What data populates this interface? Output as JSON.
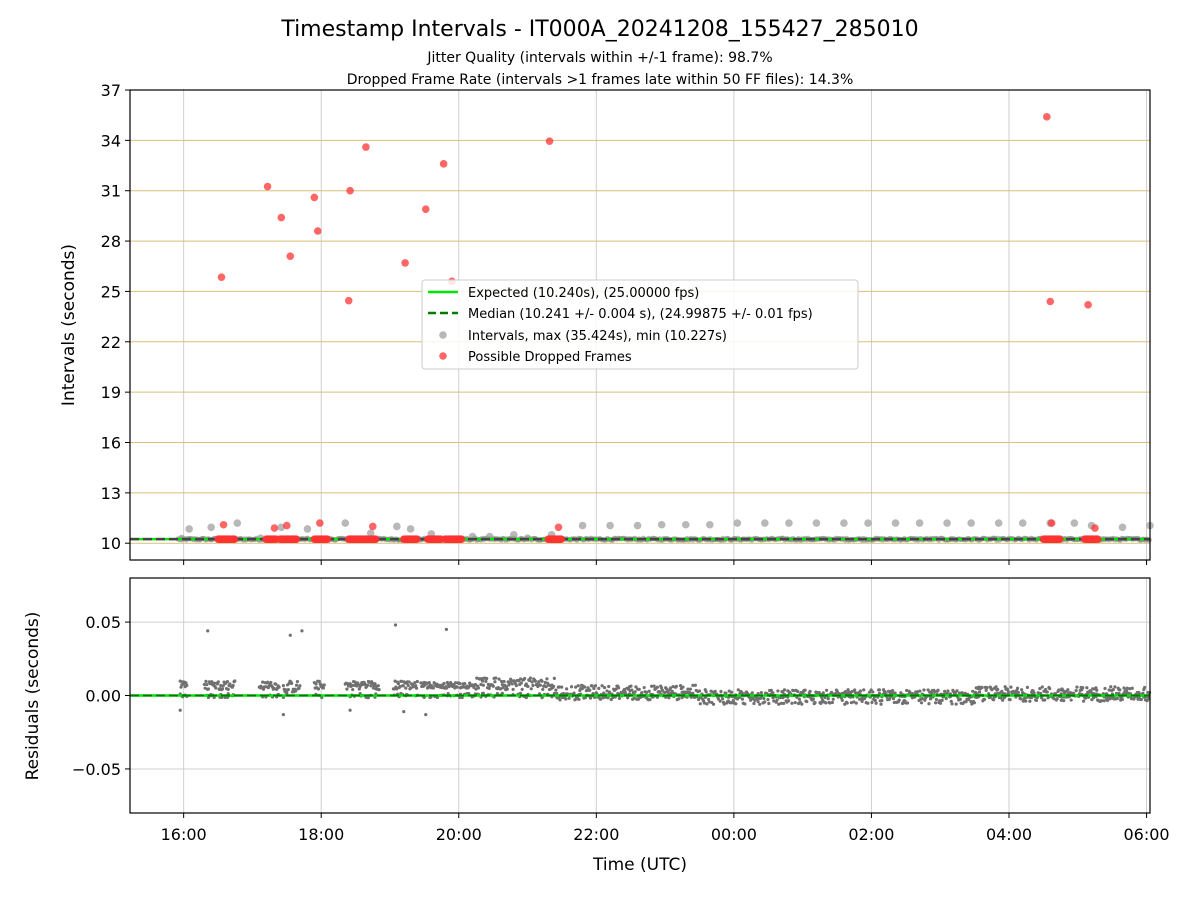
{
  "figure": {
    "title": "Timestamp Intervals - IT000A_20241208_155427_285010",
    "subtitle_1": "Jitter Quality (intervals within +/-1 frame): 98.7%",
    "subtitle_2": "Dropped Frame Rate (intervals >1 frames late within 50 FF files): 14.3%",
    "xlabel": "Time (UTC)"
  },
  "chart_data": [
    {
      "type": "scatter",
      "panel": "intervals",
      "ylabel": "Intervals (seconds)",
      "xlim_hours": [
        15.22,
        30.05
      ],
      "ylim": [
        9.0,
        37.0
      ],
      "yticks": [
        10,
        13,
        16,
        19,
        22,
        25,
        28,
        31,
        34,
        37
      ],
      "xticks": [
        "16:00",
        "18:00",
        "20:00",
        "22:00",
        "00:00",
        "02:00",
        "04:00",
        "06:00"
      ],
      "grid": "vertical gray at x ticks; horizontal goldenrod at y ticks",
      "legend_position": "center",
      "legend": [
        "Expected (10.240s), (25.00000 fps)",
        "Median (10.241 +/- 0.004 s), (24.99875 +/- 0.01 fps)",
        "Intervals, max (35.424s), min (10.227s)",
        "Possible Dropped Frames"
      ],
      "expected_line": 10.24,
      "median_line": 10.241,
      "series": [
        {
          "name": "Intervals, max (35.424s), min (10.227s)",
          "color": "#a0a0a0",
          "points": [
            [
              15.97,
              10.28
            ],
            [
              16.08,
              10.85
            ],
            [
              16.4,
              10.95
            ],
            [
              16.78,
              11.2
            ],
            [
              17.12,
              10.3
            ],
            [
              17.42,
              10.95
            ],
            [
              17.8,
              10.85
            ],
            [
              18.35,
              11.2
            ],
            [
              18.72,
              10.6
            ],
            [
              19.1,
              11.0
            ],
            [
              19.3,
              10.85
            ],
            [
              19.6,
              10.55
            ],
            [
              20.2,
              10.4
            ],
            [
              20.45,
              10.4
            ],
            [
              20.8,
              10.5
            ],
            [
              21.0,
              10.3
            ],
            [
              21.35,
              10.5
            ],
            [
              21.8,
              11.05
            ],
            [
              22.2,
              11.05
            ],
            [
              22.6,
              11.05
            ],
            [
              22.95,
              11.1
            ],
            [
              23.3,
              11.1
            ],
            [
              23.65,
              11.1
            ],
            [
              24.05,
              11.2
            ],
            [
              24.45,
              11.2
            ],
            [
              24.8,
              11.2
            ],
            [
              25.2,
              11.2
            ],
            [
              25.6,
              11.2
            ],
            [
              25.95,
              11.2
            ],
            [
              26.35,
              11.2
            ],
            [
              26.7,
              11.2
            ],
            [
              27.1,
              11.2
            ],
            [
              27.45,
              11.2
            ],
            [
              27.85,
              11.2
            ],
            [
              28.2,
              11.2
            ],
            [
              28.6,
              11.2
            ],
            [
              28.95,
              11.2
            ],
            [
              29.2,
              11.05
            ],
            [
              29.65,
              10.95
            ],
            [
              30.05,
              11.05
            ]
          ]
        },
        {
          "name": "Possible Dropped Frames",
          "color": "#ff3333",
          "points": [
            [
              16.55,
              25.85
            ],
            [
              16.58,
              11.1
            ],
            [
              17.22,
              31.25
            ],
            [
              17.32,
              10.9
            ],
            [
              17.42,
              29.4
            ],
            [
              17.5,
              11.05
            ],
            [
              17.55,
              27.1
            ],
            [
              17.9,
              30.6
            ],
            [
              17.95,
              28.6
            ],
            [
              17.98,
              11.2
            ],
            [
              18.4,
              24.45
            ],
            [
              18.42,
              31.0
            ],
            [
              18.65,
              33.6
            ],
            [
              18.75,
              11.0
            ],
            [
              19.22,
              26.7
            ],
            [
              19.52,
              29.9
            ],
            [
              19.78,
              32.6
            ],
            [
              19.9,
              25.6
            ],
            [
              21.32,
              33.95
            ],
            [
              21.45,
              10.95
            ],
            [
              28.55,
              35.4
            ],
            [
              28.6,
              24.4
            ],
            [
              28.62,
              11.2
            ],
            [
              29.15,
              24.2
            ],
            [
              29.25,
              10.9
            ]
          ],
          "clusters_near_10_24": [
            [
              16.5,
              16.75
            ],
            [
              17.2,
              17.35
            ],
            [
              17.4,
              17.65
            ],
            [
              17.9,
              18.1
            ],
            [
              18.4,
              18.65
            ],
            [
              18.65,
              18.8
            ],
            [
              19.2,
              19.4
            ],
            [
              19.55,
              19.75
            ],
            [
              19.8,
              20.05
            ],
            [
              21.3,
              21.5
            ],
            [
              28.5,
              28.75
            ],
            [
              29.1,
              29.3
            ]
          ]
        }
      ]
    },
    {
      "type": "scatter",
      "panel": "residuals",
      "ylabel": "Residuals (seconds)",
      "xlim_hours": [
        15.22,
        30.05
      ],
      "ylim": [
        -0.08,
        0.08
      ],
      "yticks": [
        "−0.05",
        "0.00",
        "0.05"
      ],
      "ytick_values": [
        -0.05,
        0.0,
        0.05
      ],
      "grid": "gray at x and y ticks",
      "zero_line": 0.0,
      "color": "#707070",
      "outliers": [
        [
          16.35,
          0.044
        ],
        [
          17.55,
          0.041
        ],
        [
          17.72,
          0.044
        ],
        [
          19.08,
          0.048
        ],
        [
          19.82,
          0.045
        ],
        [
          19.52,
          -0.013
        ],
        [
          15.95,
          -0.01
        ],
        [
          17.45,
          -0.013
        ],
        [
          18.42,
          -0.01
        ],
        [
          19.2,
          -0.011
        ]
      ],
      "bands": [
        {
          "from": 15.95,
          "to": 16.05,
          "level": 0.008,
          "spread": 0.003
        },
        {
          "from": 16.3,
          "to": 16.75,
          "level": 0.007,
          "spread": 0.003
        },
        {
          "from": 17.1,
          "to": 17.4,
          "level": 0.007,
          "spread": 0.003
        },
        {
          "from": 17.45,
          "to": 17.7,
          "level": 0.006,
          "spread": 0.004
        },
        {
          "from": 17.9,
          "to": 18.05,
          "level": 0.007,
          "spread": 0.003
        },
        {
          "from": 18.35,
          "to": 18.85,
          "level": 0.007,
          "spread": 0.003
        },
        {
          "from": 19.05,
          "to": 19.4,
          "level": 0.007,
          "spread": 0.003
        },
        {
          "from": 19.45,
          "to": 20.25,
          "level": 0.007,
          "spread": 0.002
        },
        {
          "from": 20.25,
          "to": 21.4,
          "level": 0.008,
          "spread": 0.004
        },
        {
          "from": 21.4,
          "to": 23.5,
          "level": 0.002,
          "spread": 0.005
        },
        {
          "from": 23.5,
          "to": 27.5,
          "level": -0.001,
          "spread": 0.005
        },
        {
          "from": 27.5,
          "to": 30.05,
          "level": 0.001,
          "spread": 0.005
        }
      ]
    }
  ]
}
